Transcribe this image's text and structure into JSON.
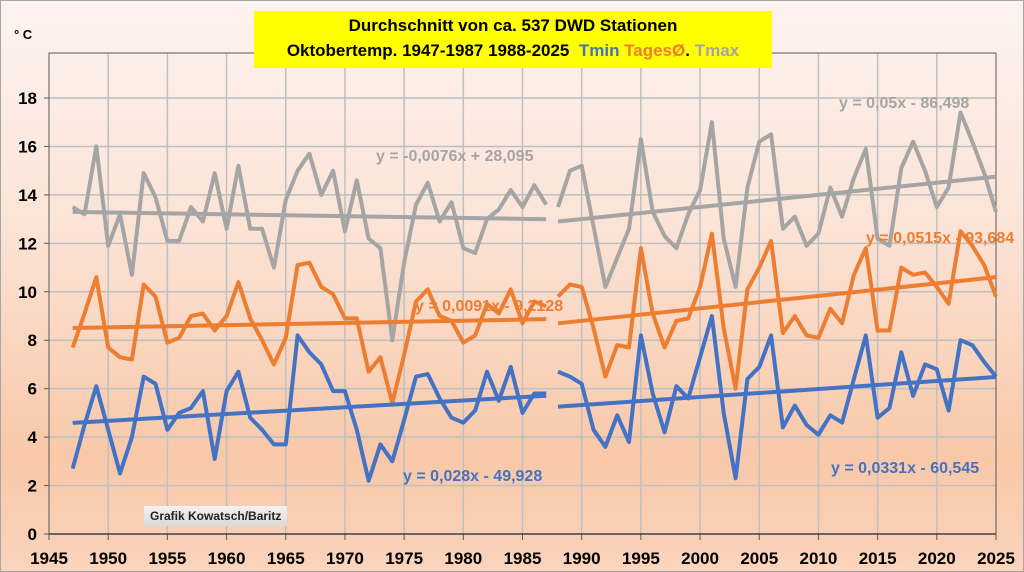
{
  "chart_data": {
    "type": "line",
    "title_line1": "Durchschnitt von ca. 537 DWD Stationen",
    "title_line2_prefix": "Oktobertemp. 1947-1987 1988-2025",
    "legend": [
      {
        "name": "Tmin",
        "color": "#4472c4"
      },
      {
        "name": "TagesØ",
        "color": "#ed7d31"
      },
      {
        "name": "Tmax",
        "color": "#a5a5a5"
      }
    ],
    "legend_dot": ".",
    "ylabel": "° C",
    "xlim": [
      1945,
      2025
    ],
    "ylim": [
      0,
      18
    ],
    "x_ticks": [
      "1945",
      "1950",
      "1955",
      "1960",
      "1965",
      "1970",
      "1975",
      "1980",
      "1985",
      "1990",
      "1995",
      "2000",
      "2005",
      "2010",
      "2015",
      "2020",
      "2025"
    ],
    "y_ticks": [
      "0",
      "2",
      "4",
      "6",
      "8",
      "10",
      "12",
      "14",
      "16",
      "18"
    ],
    "grid": true,
    "credit": "Grafik Kowatsch/Baritz",
    "segments": [
      {
        "years_start": 1947,
        "years_end": 1987
      },
      {
        "years_start": 1988,
        "years_end": 2025
      }
    ],
    "series": [
      {
        "name": "Tmax",
        "color": "#a5a5a5",
        "values_1947_1987": [
          13.5,
          13.2,
          16.0,
          11.9,
          13.2,
          10.7,
          14.9,
          13.9,
          12.1,
          12.1,
          13.5,
          12.9,
          14.9,
          12.6,
          15.2,
          12.6,
          12.6,
          11.0,
          13.8,
          15.0,
          15.7,
          14.0,
          15.0,
          12.5,
          14.6,
          12.2,
          11.8,
          8.0,
          11.2,
          13.6,
          14.5,
          12.9,
          13.7,
          11.8,
          11.6,
          13.0,
          13.4,
          14.2,
          13.5,
          14.4,
          13.6
        ],
        "values_1988_2025": [
          13.5,
          15.0,
          15.2,
          12.7,
          10.2,
          11.4,
          12.6,
          16.3,
          13.3,
          12.3,
          11.8,
          13.2,
          14.2,
          17.0,
          12.2,
          10.2,
          14.3,
          16.2,
          16.5,
          12.6,
          13.1,
          11.9,
          12.4,
          14.3,
          13.1,
          14.7,
          15.9,
          12.2,
          11.9,
          15.1,
          16.2,
          15.0,
          13.5,
          14.3,
          17.4,
          16.2,
          14.9,
          13.3
        ]
      },
      {
        "name": "TagesØ",
        "color": "#ed7d31",
        "values_1947_1987": [
          7.7,
          9.1,
          10.6,
          7.7,
          7.3,
          7.2,
          10.3,
          9.8,
          7.9,
          8.1,
          9.0,
          9.1,
          8.4,
          9.0,
          10.4,
          8.9,
          8.0,
          7.0,
          8.1,
          11.1,
          11.2,
          10.2,
          9.9,
          8.9,
          8.9,
          6.7,
          7.3,
          5.4,
          7.4,
          9.6,
          10.1,
          9.0,
          8.8,
          7.9,
          8.2,
          9.5,
          9.1,
          10.1,
          8.7,
          9.6,
          9.4
        ],
        "values_1988_2025": [
          9.8,
          10.3,
          10.2,
          8.5,
          6.5,
          7.8,
          7.7,
          11.8,
          9.1,
          7.7,
          8.8,
          8.9,
          10.2,
          12.4,
          8.5,
          6.0,
          10.1,
          11.0,
          12.1,
          8.3,
          9.0,
          8.2,
          8.1,
          9.3,
          8.7,
          10.7,
          11.8,
          8.4,
          8.4,
          11.0,
          10.7,
          10.8,
          10.2,
          9.5,
          12.5,
          11.9,
          11.1,
          9.8
        ]
      },
      {
        "name": "Tmin",
        "color": "#4472c4",
        "values_1947_1987": [
          2.7,
          4.5,
          6.1,
          4.3,
          2.5,
          4.0,
          6.5,
          6.2,
          4.3,
          5.0,
          5.2,
          5.9,
          3.1,
          5.9,
          6.7,
          4.8,
          4.3,
          3.7,
          3.7,
          8.2,
          7.5,
          7.0,
          5.9,
          5.9,
          4.3,
          2.2,
          3.7,
          3.0,
          4.7,
          6.5,
          6.6,
          5.6,
          4.8,
          4.6,
          5.1,
          6.7,
          5.5,
          6.9,
          5.0,
          5.8,
          5.8
        ],
        "values_1988_2025": [
          6.7,
          6.5,
          6.2,
          4.3,
          3.6,
          4.9,
          3.8,
          8.2,
          5.8,
          4.2,
          6.1,
          5.6,
          7.3,
          9.0,
          5.0,
          2.3,
          6.4,
          6.9,
          8.2,
          4.4,
          5.3,
          4.5,
          4.1,
          4.9,
          4.6,
          6.4,
          8.2,
          4.8,
          5.2,
          7.5,
          5.7,
          7.0,
          6.8,
          5.1,
          8.0,
          7.8,
          7.1,
          6.5
        ]
      }
    ],
    "trendlines": [
      {
        "series": "Tmax",
        "segment": 0,
        "slope": -0.0076,
        "intercept": 28.095,
        "label": "y = -0,0076x + 28,095"
      },
      {
        "series": "TagesØ",
        "segment": 0,
        "slope": 0.0091,
        "intercept": -9.2128,
        "label": "y = 0,0091x - 9,2128"
      },
      {
        "series": "Tmin",
        "segment": 0,
        "slope": 0.028,
        "intercept": -49.928,
        "label": "y = 0,028x - 49,928"
      },
      {
        "series": "Tmax",
        "segment": 1,
        "slope": 0.05,
        "intercept": -86.498,
        "label": "y = 0,05x - 86,498"
      },
      {
        "series": "TagesØ",
        "segment": 1,
        "slope": 0.0515,
        "intercept": -93.684,
        "label": "y = 0,0515x - 93,684"
      },
      {
        "series": "Tmin",
        "segment": 1,
        "slope": 0.0331,
        "intercept": -60.545,
        "label": "y = 0,0331x - 60,545"
      }
    ]
  }
}
